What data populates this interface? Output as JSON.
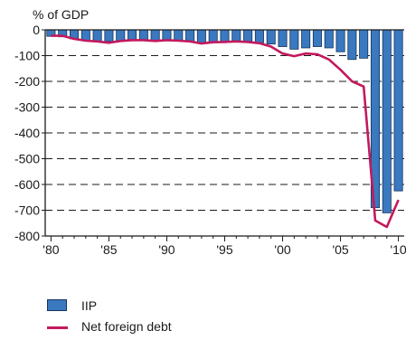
{
  "chart_data": {
    "type": "bar",
    "title": "",
    "ylabel": "% of GDP",
    "xlabel": "",
    "ylim": [
      -800,
      0
    ],
    "yticks": [
      0,
      -100,
      -200,
      -300,
      -400,
      -500,
      -600,
      -700,
      -800
    ],
    "xtick_labels": [
      "'80",
      "'85",
      "'90",
      "'95",
      "'00",
      "'05",
      "'10"
    ],
    "grid": "horizontal-dashed",
    "legend_position": "bottom",
    "x": [
      1980,
      1981,
      1982,
      1983,
      1984,
      1985,
      1986,
      1987,
      1988,
      1989,
      1990,
      1991,
      1992,
      1993,
      1994,
      1995,
      1996,
      1997,
      1998,
      1999,
      2000,
      2001,
      2002,
      2003,
      2004,
      2005,
      2006,
      2007,
      2008,
      2009,
      2010
    ],
    "series": [
      {
        "name": "IIP",
        "type": "bar",
        "color": "#3a78c0",
        "values": [
          -25,
          -27,
          -35,
          -40,
          -45,
          -45,
          -42,
          -40,
          -40,
          -42,
          -40,
          -40,
          -45,
          -50,
          -48,
          -45,
          -45,
          -45,
          -50,
          -55,
          -65,
          -75,
          -70,
          -65,
          -70,
          -85,
          -115,
          -110,
          -690,
          -710,
          -625
        ]
      },
      {
        "name": "Net foreign debt",
        "type": "line",
        "color": "#c3195d",
        "values": [
          -23,
          -23,
          -35,
          -42,
          -45,
          -50,
          -43,
          -40,
          -40,
          -43,
          -40,
          -42,
          -45,
          -53,
          -48,
          -47,
          -45,
          -47,
          -52,
          -65,
          -92,
          -102,
          -92,
          -95,
          -115,
          -155,
          -200,
          -220,
          -740,
          -765,
          -660
        ]
      }
    ]
  }
}
